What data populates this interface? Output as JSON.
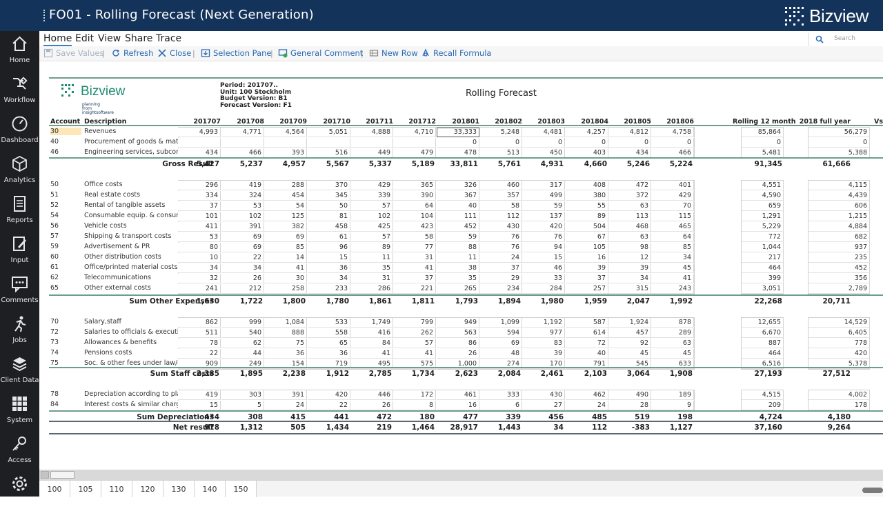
{
  "window": {
    "title": "FO01 - Rolling Forecast (Next Generation)",
    "brand": "Bizview"
  },
  "sidebar": [
    {
      "label": "Home",
      "icon": "home-icon"
    },
    {
      "label": "Workflow",
      "icon": "workflow-icon"
    },
    {
      "label": "Dashboard",
      "icon": "dashboard-icon"
    },
    {
      "label": "Analytics",
      "icon": "analytics-icon"
    },
    {
      "label": "Reports",
      "icon": "reports-icon"
    },
    {
      "label": "Input",
      "icon": "input-icon"
    },
    {
      "label": "Comments",
      "icon": "comments-icon"
    },
    {
      "label": "Jobs",
      "icon": "jobs-icon"
    },
    {
      "label": "Client Data",
      "icon": "client-data-icon"
    },
    {
      "label": "System",
      "icon": "system-icon"
    },
    {
      "label": "Access",
      "icon": "access-icon"
    },
    {
      "label": "",
      "icon": "settings-icon"
    }
  ],
  "menu": [
    "Home",
    "Edit",
    "View",
    "Share",
    "Trace"
  ],
  "search": {
    "placeholder": "Search"
  },
  "toolbar": {
    "save_values": "Save Values",
    "refresh": "Refresh",
    "close": "Close",
    "selection_pane": "Selection Pane",
    "general_comment": "General Comment",
    "new_row": "New Row",
    "recall_formula": "Recall Formula"
  },
  "report": {
    "logo_word": "Bizview",
    "logo_sub1": "planning",
    "logo_sub2": "from insightsoftware",
    "period": "Period: 201707..",
    "unit": "Unit: 100 Stockholm",
    "budget_version": "Budget Version: B1",
    "forecast_version": "Forecast Version: F1",
    "title": "Rolling Forecast",
    "col_account": "Account",
    "col_description": "Description",
    "periods": [
      "201707",
      "201708",
      "201709",
      "201710",
      "201711",
      "201712",
      "201801",
      "201802",
      "201803",
      "201804",
      "201805",
      "201806"
    ],
    "col_rolling": "Rolling 12 month",
    "col_fullyear": "2018 full year",
    "col_vs": "Vs",
    "groups": [
      {
        "rows": [
          {
            "acc": "30",
            "desc": "Revenues",
            "vals": [
              "4,993",
              "4,771",
              "4,564",
              "5,051",
              "4,888",
              "4,710",
              "33,333",
              "5,248",
              "4,481",
              "4,257",
              "4,812",
              "4,758"
            ],
            "roll": "85,864",
            "fy": "56,279"
          },
          {
            "acc": "40",
            "desc": "Procurement of goods & materials",
            "vals": [
              "",
              "",
              "",
              "",
              "",
              "",
              "0",
              "0",
              "0",
              "0",
              "0",
              "0"
            ],
            "roll": "0",
            "fy": "0"
          },
          {
            "acc": "46",
            "desc": "Engineering services, subcontracts",
            "vals": [
              "434",
              "466",
              "393",
              "516",
              "449",
              "479",
              "478",
              "513",
              "450",
              "403",
              "434",
              "466"
            ],
            "roll": "5,481",
            "fy": "5,388"
          }
        ],
        "sum": {
          "label": "Gross Result",
          "vals": [
            "5,427",
            "5,237",
            "4,957",
            "5,567",
            "5,337",
            "5,189",
            "33,811",
            "5,761",
            "4,931",
            "4,660",
            "5,246",
            "5,224"
          ],
          "roll": "91,345",
          "fy": "61,666"
        }
      },
      {
        "rows": [
          {
            "acc": "50",
            "desc": "Office costs",
            "vals": [
              "296",
              "419",
              "288",
              "370",
              "429",
              "365",
              "326",
              "460",
              "317",
              "408",
              "472",
              "401"
            ],
            "roll": "4,551",
            "fy": "4,115"
          },
          {
            "acc": "51",
            "desc": "Real estate costs",
            "vals": [
              "334",
              "324",
              "454",
              "345",
              "339",
              "390",
              "367",
              "357",
              "499",
              "380",
              "372",
              "429"
            ],
            "roll": "4,590",
            "fy": "4,439"
          },
          {
            "acc": "52",
            "desc": "Rental of tangible assets",
            "vals": [
              "37",
              "53",
              "54",
              "50",
              "57",
              "64",
              "40",
              "58",
              "59",
              "55",
              "63",
              "70"
            ],
            "roll": "659",
            "fy": "606"
          },
          {
            "acc": "54",
            "desc": "Consumable equip. & consumable matl.",
            "vals": [
              "101",
              "102",
              "125",
              "81",
              "102",
              "104",
              "111",
              "112",
              "137",
              "89",
              "113",
              "115"
            ],
            "roll": "1,291",
            "fy": "1,215"
          },
          {
            "acc": "56",
            "desc": "Vehicle costs",
            "vals": [
              "411",
              "391",
              "382",
              "458",
              "425",
              "423",
              "452",
              "430",
              "420",
              "504",
              "468",
              "465"
            ],
            "roll": "5,229",
            "fy": "4,884"
          },
          {
            "acc": "57",
            "desc": "Shipping & transport costs",
            "vals": [
              "53",
              "69",
              "69",
              "61",
              "57",
              "58",
              "59",
              "76",
              "76",
              "67",
              "63",
              "64"
            ],
            "roll": "772",
            "fy": "682"
          },
          {
            "acc": "59",
            "desc": "Advertisement & PR",
            "vals": [
              "80",
              "69",
              "85",
              "96",
              "89",
              "77",
              "88",
              "76",
              "94",
              "105",
              "98",
              "85"
            ],
            "roll": "1,044",
            "fy": "937"
          },
          {
            "acc": "60",
            "desc": "Other distribution costs",
            "vals": [
              "10",
              "22",
              "14",
              "15",
              "11",
              "31",
              "11",
              "24",
              "15",
              "16",
              "12",
              "34"
            ],
            "roll": "217",
            "fy": "235"
          },
          {
            "acc": "61",
            "desc": "Office/printed material costs",
            "vals": [
              "34",
              "34",
              "41",
              "36",
              "35",
              "41",
              "38",
              "37",
              "46",
              "39",
              "39",
              "45"
            ],
            "roll": "464",
            "fy": "452"
          },
          {
            "acc": "62",
            "desc": "Telecommunications",
            "vals": [
              "32",
              "26",
              "30",
              "34",
              "31",
              "37",
              "35",
              "29",
              "33",
              "37",
              "34",
              "41"
            ],
            "roll": "399",
            "fy": "356"
          },
          {
            "acc": "65",
            "desc": "Other external costs",
            "vals": [
              "241",
              "212",
              "258",
              "233",
              "286",
              "221",
              "265",
              "234",
              "284",
              "257",
              "315",
              "243"
            ],
            "roll": "3,051",
            "fy": "2,789"
          }
        ],
        "sum": {
          "label": "Sum Other Expenses",
          "vals": [
            "1,630",
            "1,722",
            "1,800",
            "1,780",
            "1,861",
            "1,811",
            "1,793",
            "1,894",
            "1,980",
            "1,959",
            "2,047",
            "1,992"
          ],
          "roll": "22,268",
          "fy": "20,711"
        }
      },
      {
        "rows": [
          {
            "acc": "70",
            "desc": "Salary,staff",
            "vals": [
              "862",
              "999",
              "1,084",
              "533",
              "1,749",
              "799",
              "949",
              "1,099",
              "1,192",
              "587",
              "1,924",
              "878"
            ],
            "roll": "12,655",
            "fy": "14,529"
          },
          {
            "acc": "72",
            "desc": "Salaries to officials & executives",
            "vals": [
              "511",
              "540",
              "888",
              "558",
              "416",
              "262",
              "563",
              "594",
              "977",
              "614",
              "457",
              "289"
            ],
            "roll": "6,670",
            "fy": "6,405"
          },
          {
            "acc": "73",
            "desc": "Allowances & benefits",
            "vals": [
              "78",
              "62",
              "75",
              "65",
              "84",
              "57",
              "86",
              "69",
              "83",
              "72",
              "92",
              "63"
            ],
            "roll": "887",
            "fy": "778"
          },
          {
            "acc": "74",
            "desc": "Pensions costs",
            "vals": [
              "22",
              "44",
              "36",
              "36",
              "41",
              "41",
              "26",
              "48",
              "39",
              "40",
              "45",
              "45"
            ],
            "roll": "464",
            "fy": "420"
          },
          {
            "acc": "75",
            "desc": "Soc. & other fees under law/agreements",
            "vals": [
              "909",
              "249",
              "154",
              "719",
              "495",
              "575",
              "1,000",
              "274",
              "170",
              "791",
              "545",
              "633"
            ],
            "roll": "6,516",
            "fy": "5,378"
          }
        ],
        "sum": {
          "label": "Sum Staff costs",
          "vals": [
            "2,385",
            "1,895",
            "2,238",
            "1,912",
            "2,785",
            "1,734",
            "2,623",
            "2,084",
            "2,461",
            "2,103",
            "3,064",
            "1,908"
          ],
          "roll": "27,193",
          "fy": "27,512"
        }
      },
      {
        "rows": [
          {
            "acc": "78",
            "desc": "Depreciation according to plan",
            "vals": [
              "419",
              "303",
              "391",
              "420",
              "446",
              "172",
              "461",
              "333",
              "430",
              "462",
              "490",
              "189"
            ],
            "roll": "4,515",
            "fy": "4,002"
          },
          {
            "acc": "84",
            "desc": "Interest costs & similar charges",
            "vals": [
              "15",
              "5",
              "24",
              "22",
              "26",
              "8",
              "16",
              "6",
              "27",
              "24",
              "28",
              "9"
            ],
            "roll": "209",
            "fy": "178"
          }
        ],
        "sum": {
          "label": "Sum Depreciations",
          "vals": [
            "434",
            "308",
            "415",
            "441",
            "472",
            "180",
            "477",
            "339",
            "456",
            "485",
            "519",
            "198"
          ],
          "roll": "4,724",
          "fy": "4,180"
        }
      }
    ],
    "net": {
      "label": "Net result",
      "vals": [
        "978",
        "1,312",
        "505",
        "1,434",
        "219",
        "1,464",
        "28,917",
        "1,443",
        "34",
        "112",
        "-383",
        "1,127"
      ],
      "roll": "37,160",
      "fy": "9,264"
    }
  },
  "sheet_tabs": [
    "100",
    "105",
    "110",
    "120",
    "130",
    "140",
    "150"
  ]
}
